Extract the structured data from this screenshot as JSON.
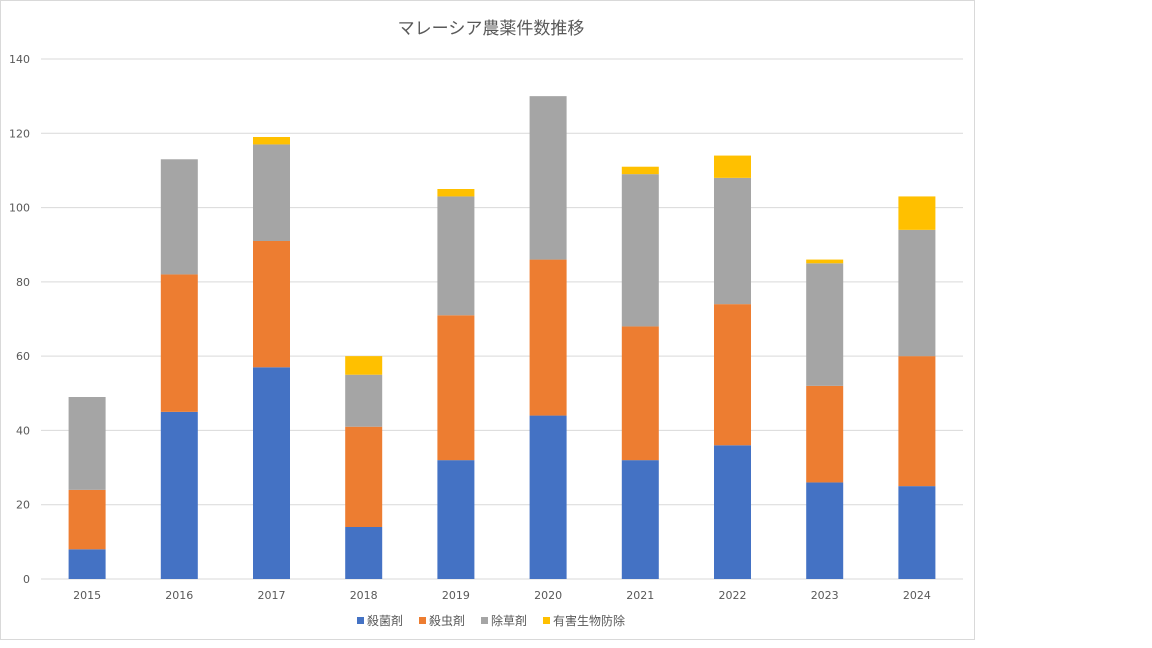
{
  "chart_data": {
    "type": "bar",
    "stacked": true,
    "title": "マレーシア農薬件数推移",
    "xlabel": "",
    "ylabel": "",
    "categories": [
      "2015",
      "2016",
      "2017",
      "2018",
      "2019",
      "2020",
      "2021",
      "2022",
      "2023",
      "2024"
    ],
    "ylim": [
      0,
      140
    ],
    "yticks": [
      0,
      20,
      40,
      60,
      80,
      100,
      120,
      140
    ],
    "grid": true,
    "legend_position": "bottom",
    "series": [
      {
        "name": "殺菌剤",
        "color": "#4472c4",
        "values": [
          8,
          45,
          57,
          14,
          32,
          44,
          32,
          36,
          26,
          25
        ]
      },
      {
        "name": "殺虫剤",
        "color": "#ed7d31",
        "values": [
          16,
          37,
          34,
          27,
          39,
          42,
          36,
          38,
          26,
          35
        ]
      },
      {
        "name": "除草剤",
        "color": "#a5a5a5",
        "values": [
          25,
          31,
          26,
          14,
          32,
          44,
          41,
          34,
          33,
          34
        ]
      },
      {
        "name": "有害生物防除",
        "color": "#ffc000",
        "values": [
          0,
          0,
          2,
          5,
          2,
          0,
          2,
          6,
          1,
          9
        ]
      }
    ]
  }
}
